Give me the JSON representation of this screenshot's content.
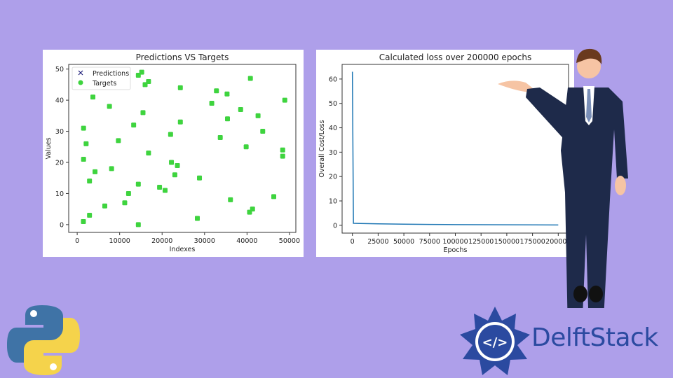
{
  "chart_data": [
    {
      "type": "scatter",
      "title": "Predictions VS Targets",
      "xlabel": "Indexes",
      "ylabel": "Values",
      "xlim": [
        -2000,
        51500
      ],
      "ylim": [
        -2.5,
        51.5
      ],
      "xticks": [
        0,
        10000,
        20000,
        30000,
        40000,
        50000
      ],
      "yticks": [
        0,
        10,
        20,
        30,
        40,
        50
      ],
      "legend": {
        "placement": "top-left",
        "entries": [
          "Predictions",
          "Targets"
        ]
      },
      "colors": {
        "predictions": "#1f1f7a",
        "targets": "#3ed43e"
      },
      "series": [
        {
          "name": "Targets",
          "x": [
            1460,
            1500,
            1500,
            2100,
            2900,
            2900,
            3700,
            4200,
            6500,
            7600,
            8100,
            9700,
            11200,
            12100,
            13300,
            14400,
            14400,
            14400,
            15200,
            15500,
            16000,
            16800,
            16800,
            19400,
            20700,
            22000,
            22200,
            23000,
            23600,
            24300,
            24300,
            28300,
            28800,
            31700,
            32800,
            33700,
            35300,
            35400,
            36100,
            38500,
            39800,
            40600,
            40800,
            41300,
            42600,
            43700,
            46300,
            48400,
            48400,
            48900
          ],
          "y": [
            1,
            21,
            31,
            26,
            14,
            3,
            41,
            17,
            6,
            38,
            18,
            27,
            7,
            10,
            32,
            0,
            13,
            48,
            49,
            36,
            45,
            46,
            23,
            12,
            11,
            29,
            20,
            16,
            19,
            44,
            33,
            2,
            15,
            39,
            43,
            28,
            42,
            34,
            8,
            37,
            25,
            4,
            47,
            5,
            35,
            30,
            9,
            24,
            22,
            40
          ]
        },
        {
          "name": "Predictions",
          "x": [
            1460,
            1500,
            1500,
            2100,
            2900,
            2900,
            3700,
            4200,
            6500,
            7600,
            8100,
            9700,
            11200,
            12100,
            13300,
            14400,
            14400,
            14400,
            15200,
            15500,
            16000,
            16800,
            16800,
            19400,
            20700,
            22000,
            22200,
            23000,
            23600,
            24300,
            24300,
            28300,
            28800,
            31700,
            32800,
            33700,
            35300,
            35400,
            36100,
            38500,
            39800,
            40600,
            40800,
            41300,
            42600,
            43700,
            46300,
            48400,
            48400,
            48900
          ],
          "y": [
            1,
            21,
            31,
            26,
            14,
            3,
            41,
            17,
            6,
            38,
            18,
            27,
            7,
            10,
            32,
            0,
            13,
            48,
            49,
            36,
            45,
            46,
            23,
            12,
            11,
            29,
            20,
            16,
            19,
            44,
            33,
            2,
            15,
            39,
            43,
            28,
            42,
            34,
            8,
            37,
            25,
            4,
            47,
            5,
            35,
            30,
            9,
            24,
            22,
            40
          ]
        }
      ]
    },
    {
      "type": "line",
      "title": "Calculated loss over 200000 epochs",
      "xlabel": "Epochs",
      "ylabel": "Overall Cost/Loss",
      "xlim": [
        -10000,
        210000
      ],
      "ylim": [
        -3.2,
        66
      ],
      "xticks": [
        0,
        25000,
        50000,
        75000,
        100000,
        125000,
        150000,
        175000,
        200000
      ],
      "yticks": [
        0,
        10,
        20,
        30,
        40,
        50,
        60
      ],
      "color": "#1f77b4",
      "series": [
        {
          "name": "loss",
          "x": [
            0,
            1000,
            25000,
            50000,
            75000,
            100000,
            150000,
            200000
          ],
          "y": [
            63,
            0.8,
            0.6,
            0.45,
            0.35,
            0.28,
            0.2,
            0.15
          ]
        }
      ]
    }
  ],
  "brand": {
    "name": "DelftStack",
    "logo_text": "</>"
  }
}
